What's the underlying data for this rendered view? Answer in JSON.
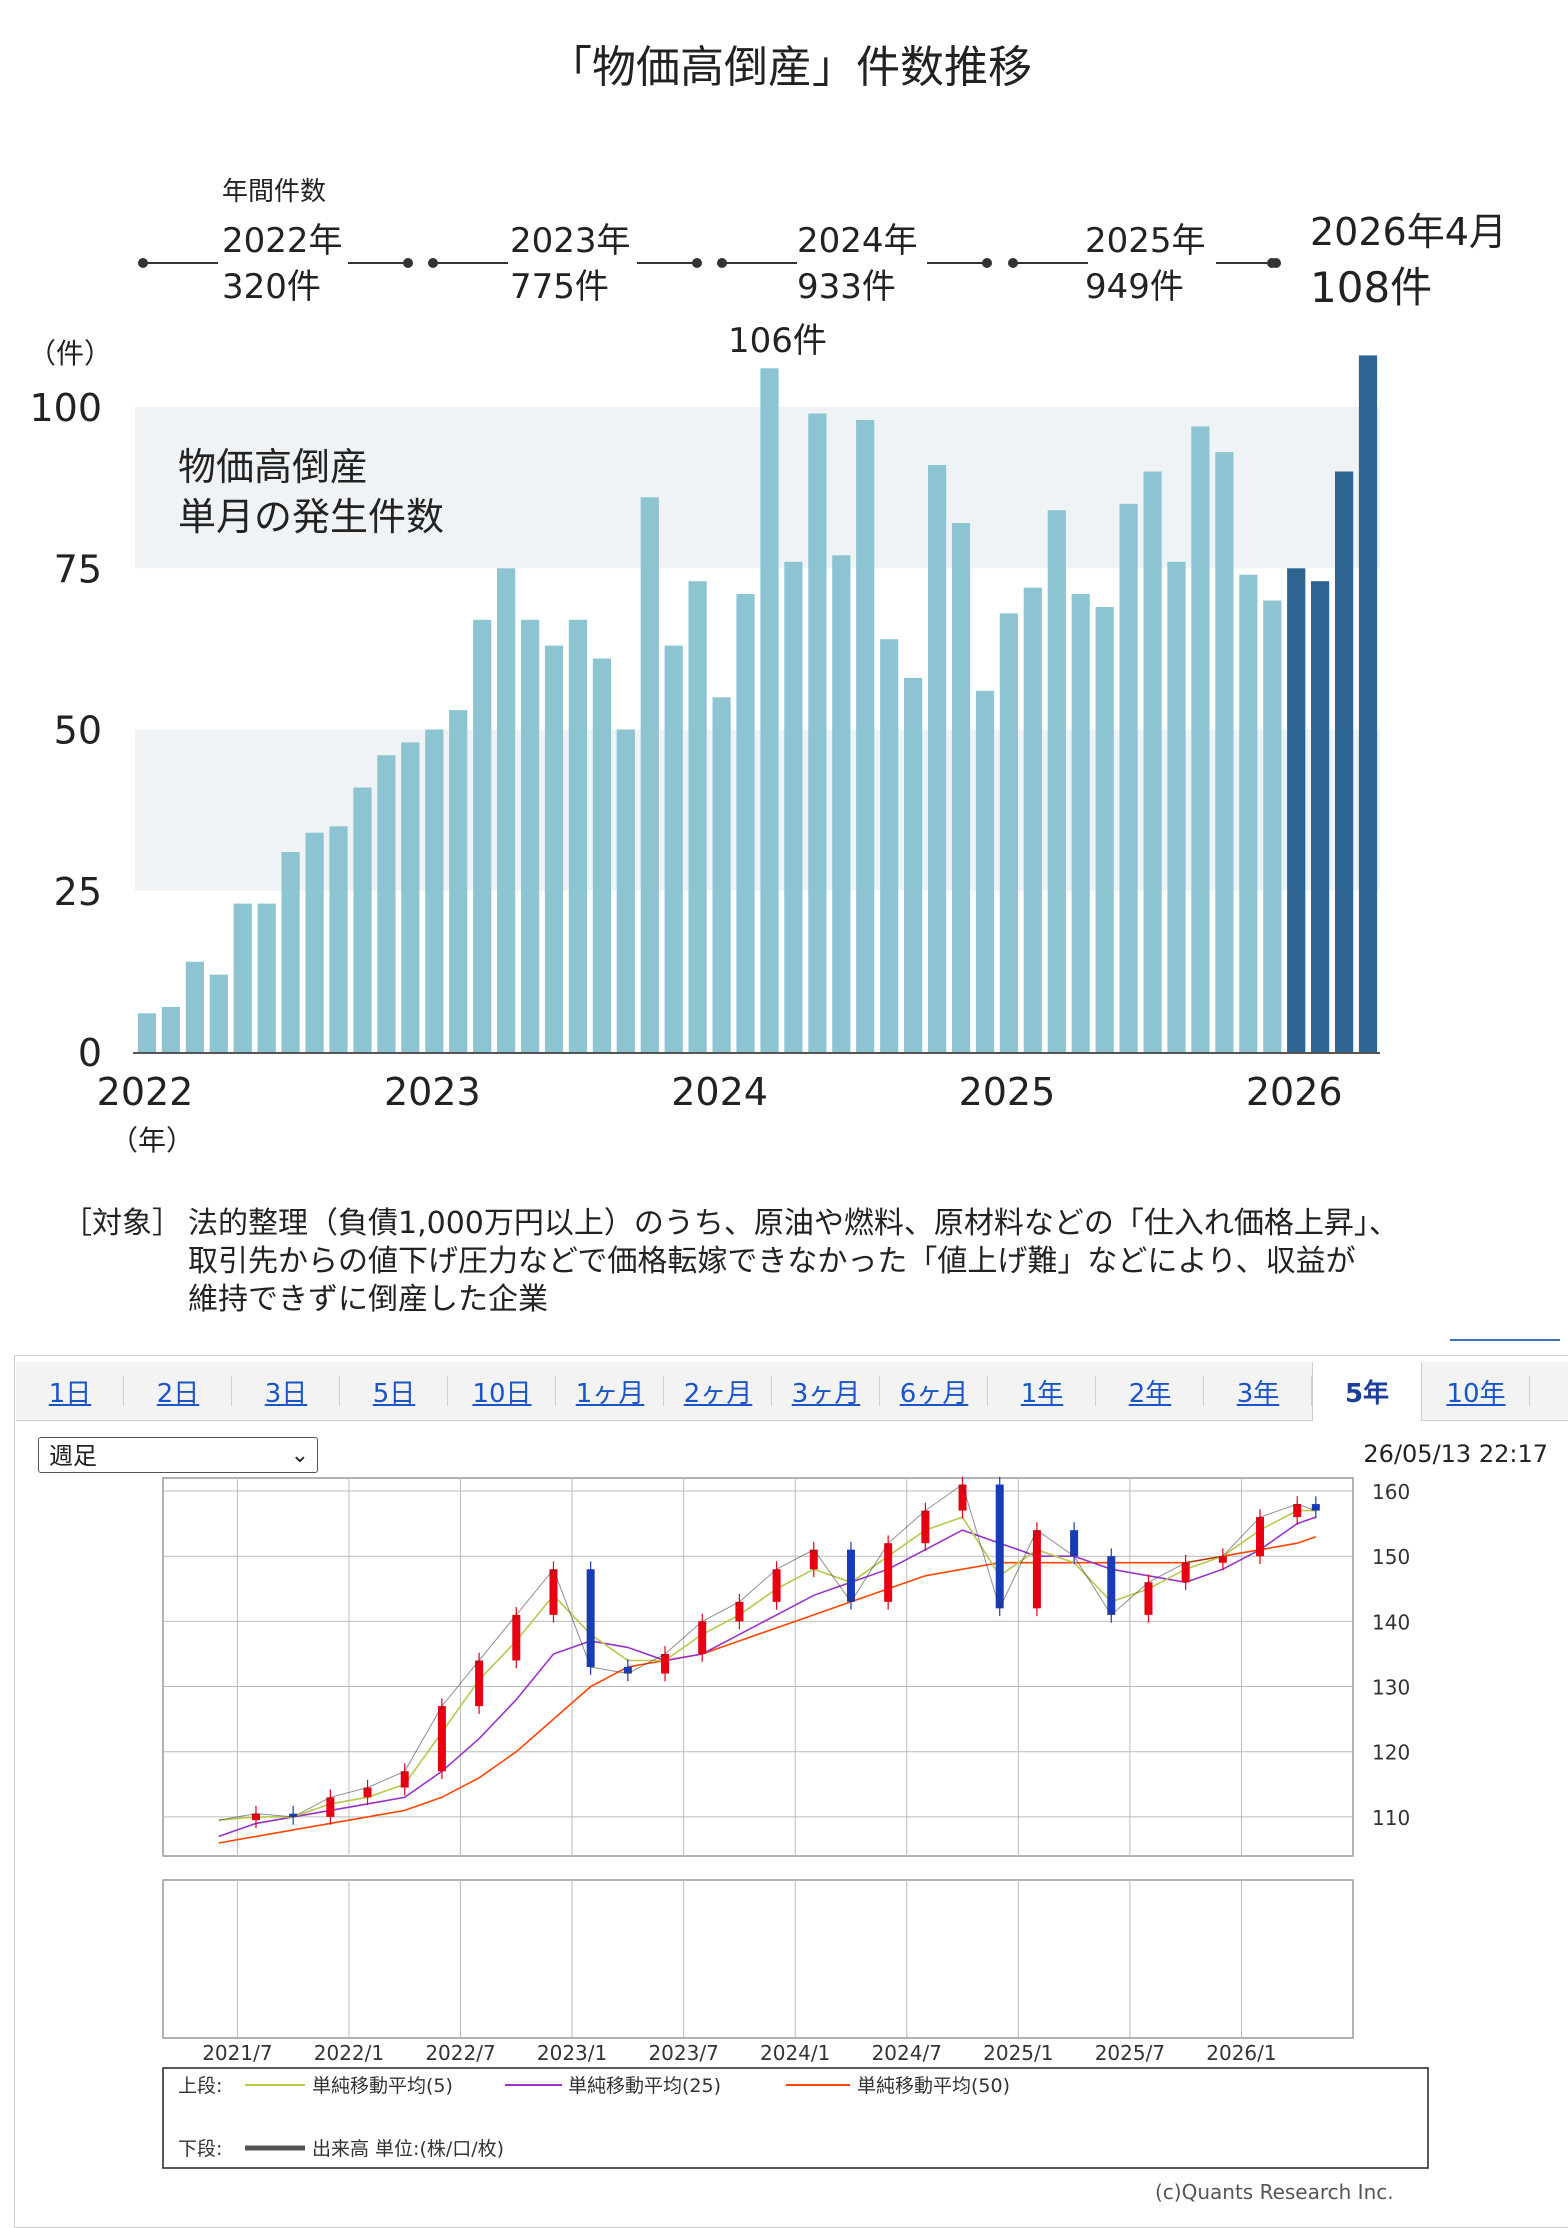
{
  "chart_data": [
    {
      "type": "bar",
      "title": "「物価高倒産」件数推移",
      "inner_label": [
        "物価高倒産",
        "単月の発生件数"
      ],
      "ylabel": "（件）",
      "xlabel": "（年）",
      "ylim": [
        0,
        100
      ],
      "yticks": [
        0,
        25,
        50,
        75,
        100
      ],
      "year_labels": [
        "2022",
        "2023",
        "2024",
        "2025",
        "2026"
      ],
      "series": [
        {
          "values": [
            6,
            7,
            14,
            12,
            23,
            23,
            31,
            34,
            35,
            41,
            46,
            48,
            50,
            53,
            67,
            75,
            67,
            63,
            67,
            61,
            50,
            86,
            63,
            73,
            55,
            71,
            106,
            76,
            99,
            77,
            98,
            64,
            58,
            91,
            82,
            56,
            68,
            72,
            84,
            71,
            69,
            85,
            90,
            76,
            97,
            93,
            74,
            70
          ]
        },
        {
          "values": [
            75,
            73,
            90,
            108
          ]
        }
      ],
      "peak_label": "106件",
      "annual_header": "年間件数",
      "annual": [
        {
          "year": "2022年",
          "count": "320件"
        },
        {
          "year": "2023年",
          "count": "775件"
        },
        {
          "year": "2024年",
          "count": "933件"
        },
        {
          "year": "2025年",
          "count": "949件"
        },
        {
          "year": "2026年4月",
          "count": "108件"
        }
      ],
      "colors": {
        "bar": "#8cc4d2",
        "highlight": "#2e6491",
        "band": "#f0f3f5"
      }
    },
    {
      "type": "line",
      "ylim": [
        104,
        162
      ],
      "yticks": [
        110,
        120,
        130,
        140,
        150,
        160
      ],
      "x_labels": [
        "2021/7",
        "2022/1",
        "2022/7",
        "2023/1",
        "2023/7",
        "2024/1",
        "2024/7",
        "2025/1",
        "2025/7",
        "2026/1"
      ],
      "x": [
        "2021/6",
        "2021/8",
        "2021/10",
        "2021/12",
        "2022/2",
        "2022/4",
        "2022/6",
        "2022/8",
        "2022/10",
        "2022/12",
        "2023/2",
        "2023/4",
        "2023/6",
        "2023/8",
        "2023/10",
        "2023/12",
        "2024/2",
        "2024/4",
        "2024/6",
        "2024/8",
        "2024/10",
        "2024/12",
        "2025/2",
        "2025/4",
        "2025/6",
        "2025/8",
        "2025/10",
        "2025/12",
        "2026/2",
        "2026/4",
        "2026/5"
      ],
      "price": [
        109.5,
        110.5,
        110,
        113,
        114.5,
        117,
        127,
        134,
        141,
        148,
        133,
        132,
        135,
        140,
        143,
        148,
        151,
        143,
        152,
        157,
        161,
        142,
        154,
        150,
        141,
        146,
        149,
        150,
        156,
        158,
        157
      ],
      "ma5": [
        109.5,
        110,
        110,
        112,
        113,
        115,
        123,
        131,
        137,
        144,
        138,
        134,
        134,
        138,
        141,
        145,
        148,
        146,
        150,
        154,
        156,
        147,
        151,
        149,
        143,
        145,
        148,
        150,
        154,
        157,
        157
      ],
      "ma25": [
        107,
        109,
        110,
        111,
        112,
        113,
        117,
        122,
        128,
        135,
        137,
        136,
        134,
        135,
        138,
        141,
        144,
        146,
        148,
        151,
        154,
        152,
        150,
        150,
        148,
        147,
        146,
        148,
        151,
        155,
        156
      ],
      "ma50": [
        106,
        107,
        108,
        109,
        110,
        111,
        113,
        116,
        120,
        125,
        130,
        133,
        134,
        135,
        137,
        139,
        141,
        143,
        145,
        147,
        148,
        149,
        149,
        149,
        149,
        149,
        149,
        150,
        151,
        152,
        153
      ],
      "colors": {
        "up": "#e60012",
        "down": "#1a3bb8",
        "ma5": "#b8c84a",
        "ma25": "#9932cc",
        "ma50": "#ff4500"
      }
    }
  ],
  "tabs": [
    "1日",
    "2日",
    "3日",
    "5日",
    "10日",
    "1ヶ月",
    "2ヶ月",
    "3ヶ月",
    "6ヶ月",
    "1年",
    "2年",
    "3年",
    "5年",
    "10年"
  ],
  "active_tab": "5年",
  "period_select": {
    "value": "週足"
  },
  "timestamp": "26/05/13 22:17",
  "legend": {
    "upper": "上段:",
    "lower": "下段:",
    "ma5": "単純移動平均(5)",
    "ma25": "単純移動平均(25)",
    "ma50": "単純移動平均(50)",
    "volume": "出来高 単位:(株/口/枚)"
  },
  "note": {
    "tag": "［対象］",
    "lines": [
      "法的整理（負債1,000万円以上）のうち、原油や燃料、原材料などの「仕入れ価格上昇」、",
      "取引先からの値下げ圧力などで価格転嫁できなかった「値上げ難」などにより、収益が",
      "維持できずに倒産した企業"
    ]
  },
  "copyright": "(c)Quants Research Inc."
}
